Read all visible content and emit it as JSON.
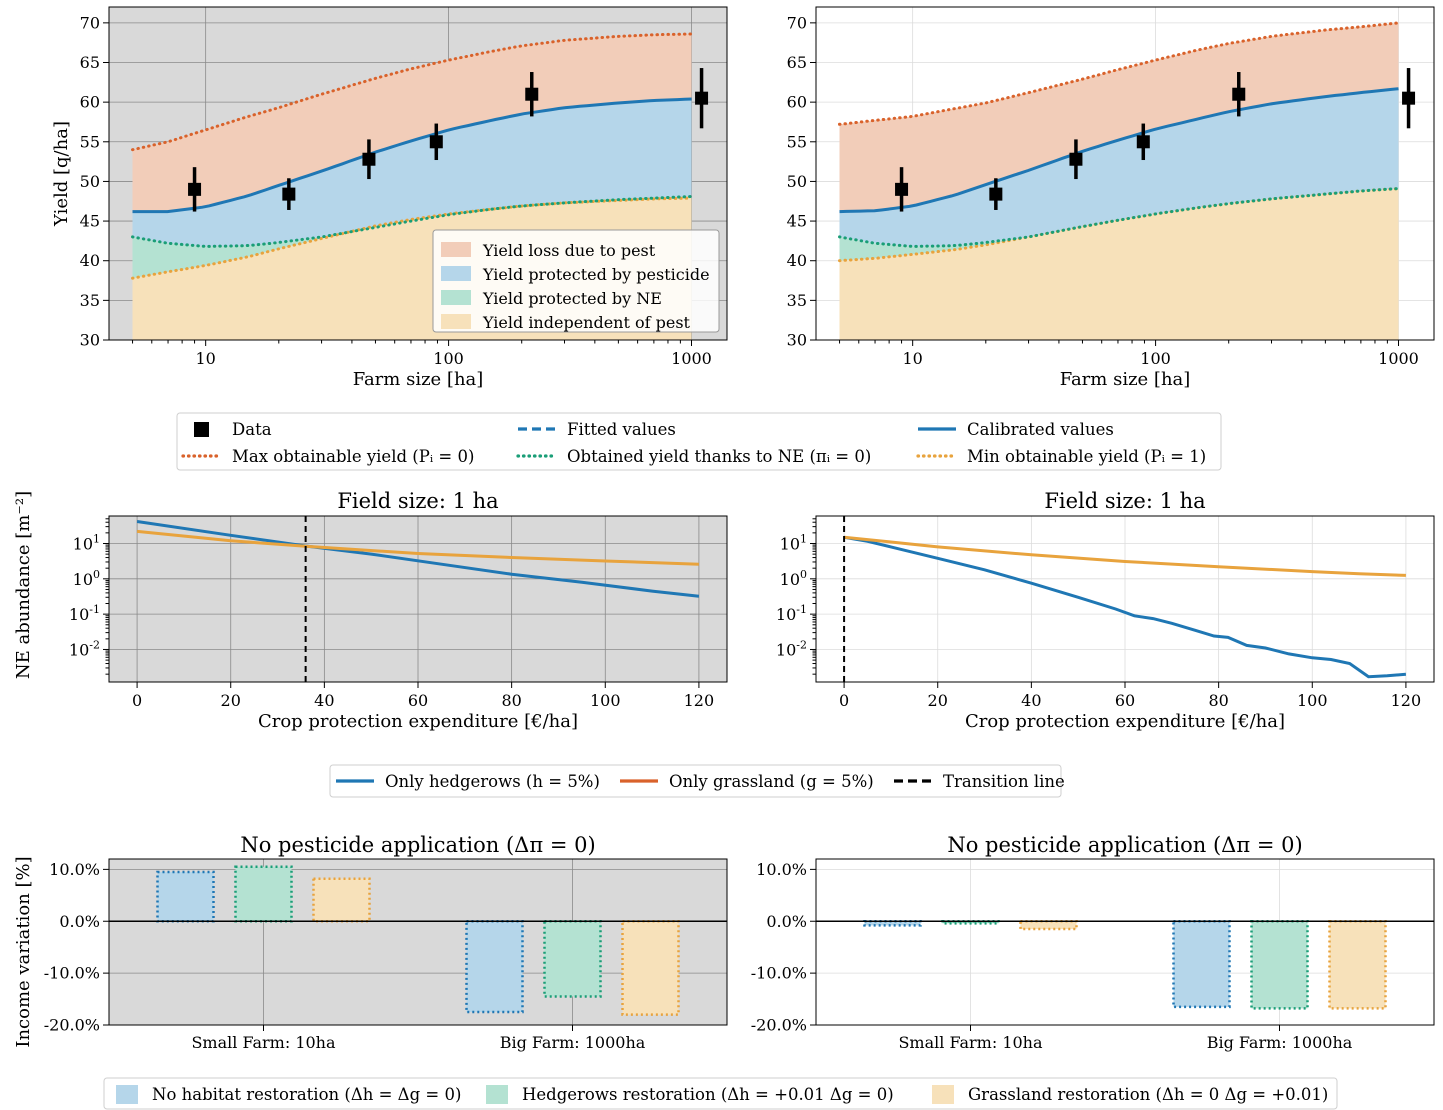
{
  "chart_data": [
    {
      "id": "yield-gray",
      "type": "area",
      "xscale": "log",
      "xlim": [
        4,
        1400
      ],
      "ylim": [
        30,
        72
      ],
      "xlabel": "Farm size [ha]",
      "ylabel": "Yield [q/ha]",
      "xticks": [
        10,
        100,
        1000
      ],
      "xtick_labels": [
        "10",
        "100",
        "1000"
      ],
      "yticks": [
        30,
        35,
        40,
        45,
        50,
        55,
        60,
        65,
        70
      ],
      "ytick_labels": [
        "30",
        "35",
        "40",
        "45",
        "50",
        "55",
        "60",
        "65",
        "70"
      ],
      "background": "#d9d9d9",
      "grid": true,
      "x": [
        5,
        7,
        10,
        15,
        20,
        30,
        50,
        70,
        100,
        150,
        200,
        300,
        500,
        700,
        1000
      ],
      "max_yield": [
        54.0,
        55.0,
        56.5,
        58.2,
        59.3,
        61.0,
        63.0,
        64.2,
        65.3,
        66.4,
        67.1,
        67.8,
        68.3,
        68.5,
        68.6
      ],
      "calibrated": [
        46.2,
        46.2,
        46.8,
        48.2,
        49.5,
        51.3,
        53.7,
        55.1,
        56.5,
        57.7,
        58.5,
        59.3,
        59.9,
        60.2,
        60.4
      ],
      "ne_yield": [
        43.0,
        42.2,
        41.8,
        41.9,
        42.3,
        43.0,
        44.2,
        45.0,
        45.8,
        46.5,
        46.9,
        47.3,
        47.7,
        47.9,
        48.1
      ],
      "min_yield": [
        37.8,
        38.6,
        39.4,
        40.5,
        41.5,
        42.8,
        44.4,
        45.2,
        45.9,
        46.5,
        46.9,
        47.3,
        47.6,
        47.8,
        47.9
      ],
      "data_points": [
        {
          "x": 9,
          "y": 49.0,
          "err": 2.8
        },
        {
          "x": 22,
          "y": 48.4,
          "err": 2.0
        },
        {
          "x": 47,
          "y": 52.8,
          "err": 2.5
        },
        {
          "x": 89,
          "y": 55.0,
          "err": 2.3
        },
        {
          "x": 220,
          "y": 61.0,
          "err": 2.8
        },
        {
          "x": 1100,
          "y": 60.5,
          "err": 3.8
        }
      ],
      "legend": {
        "location": "lower right",
        "entries": [
          {
            "label": "Yield loss due to pest",
            "color": "#f2cdb9"
          },
          {
            "label": "Yield protected by pesticide",
            "color": "#b5d6ea"
          },
          {
            "label": "Yield protected by NE",
            "color": "#b4e2d2"
          },
          {
            "label": "Yield independent of pest",
            "color": "#f7e1ba"
          }
        ]
      }
    },
    {
      "id": "yield-white",
      "type": "area",
      "xscale": "log",
      "xlim": [
        4,
        1400
      ],
      "ylim": [
        30,
        72
      ],
      "xlabel": "Farm size [ha]",
      "ylabel": "",
      "xticks": [
        10,
        100,
        1000
      ],
      "xtick_labels": [
        "10",
        "100",
        "1000"
      ],
      "yticks": [
        30,
        35,
        40,
        45,
        50,
        55,
        60,
        65,
        70
      ],
      "ytick_labels": [
        "30",
        "35",
        "40",
        "45",
        "50",
        "55",
        "60",
        "65",
        "70"
      ],
      "background": "#ffffff",
      "grid": true,
      "x": [
        5,
        7,
        10,
        15,
        20,
        30,
        50,
        70,
        100,
        150,
        200,
        300,
        500,
        700,
        1000
      ],
      "max_yield": [
        57.2,
        57.7,
        58.2,
        59.2,
        59.9,
        61.2,
        62.9,
        64.1,
        65.3,
        66.6,
        67.4,
        68.3,
        69.1,
        69.5,
        70.0
      ],
      "calibrated": [
        46.2,
        46.3,
        46.9,
        48.3,
        49.6,
        51.4,
        53.8,
        55.2,
        56.6,
        57.9,
        58.8,
        59.8,
        60.7,
        61.2,
        61.7
      ],
      "ne_yield": [
        43.0,
        42.2,
        41.8,
        41.9,
        42.3,
        43.0,
        44.3,
        45.1,
        45.9,
        46.7,
        47.2,
        47.8,
        48.4,
        48.8,
        49.1
      ],
      "min_yield": [
        40.0,
        40.3,
        40.8,
        41.4,
        42.0,
        43.0,
        44.3,
        45.1,
        45.9,
        46.7,
        47.2,
        47.8,
        48.4,
        48.8,
        49.1
      ],
      "data_points": [
        {
          "x": 9,
          "y": 49.0,
          "err": 2.8
        },
        {
          "x": 22,
          "y": 48.4,
          "err": 2.0
        },
        {
          "x": 47,
          "y": 52.8,
          "err": 2.5
        },
        {
          "x": 89,
          "y": 55.0,
          "err": 2.3
        },
        {
          "x": 220,
          "y": 61.0,
          "err": 2.8
        },
        {
          "x": 1100,
          "y": 60.5,
          "err": 3.8
        }
      ]
    },
    {
      "id": "ne-gray",
      "type": "line",
      "title": "Field size: 1 ha",
      "yscale": "log",
      "xlim": [
        -6,
        126
      ],
      "ylim": [
        0.0012,
        60
      ],
      "xlabel": "Crop protection expenditure [€/ha]",
      "ylabel": "NE abundance [m⁻²]",
      "xticks": [
        0,
        20,
        40,
        60,
        80,
        100,
        120
      ],
      "xtick_labels": [
        "0",
        "20",
        "40",
        "60",
        "80",
        "100",
        "120"
      ],
      "ytick_exponents": [
        -2,
        -1,
        0,
        1
      ],
      "background": "#d9d9d9",
      "grid": true,
      "transition_x": 36,
      "series": [
        {
          "name": "Only hedgerows (h = 5%)",
          "color": "#1f77b4",
          "x": [
            0,
            20,
            36,
            50,
            65,
            80,
            95,
            110,
            120
          ],
          "y": [
            42,
            17,
            8.5,
            5.0,
            2.6,
            1.35,
            0.8,
            0.45,
            0.32
          ]
        },
        {
          "name": "Only grassland (g = 5%)",
          "color": "#e8a33d",
          "x": [
            0,
            20,
            36,
            60,
            80,
            100,
            120
          ],
          "y": [
            22,
            12,
            8.3,
            5.2,
            4.0,
            3.2,
            2.6
          ]
        }
      ]
    },
    {
      "id": "ne-white",
      "type": "line",
      "title": "Field size: 1 ha",
      "yscale": "log",
      "xlim": [
        -6,
        126
      ],
      "ylim": [
        0.0012,
        60
      ],
      "xlabel": "Crop protection expenditure [€/ha]",
      "ylabel": "",
      "xticks": [
        0,
        20,
        40,
        60,
        80,
        100,
        120
      ],
      "xtick_labels": [
        "0",
        "20",
        "40",
        "60",
        "80",
        "100",
        "120"
      ],
      "ytick_exponents": [
        -2,
        -1,
        0,
        1
      ],
      "background": "#ffffff",
      "grid": true,
      "transition_x": 0,
      "series": [
        {
          "name": "Only hedgerows (h = 5%)",
          "color": "#1f77b4",
          "x": [
            0,
            5,
            10,
            20,
            30,
            40,
            50,
            58,
            62,
            66,
            70,
            75,
            79,
            82,
            86,
            90,
            95,
            100,
            104,
            108,
            112,
            116,
            120
          ],
          "y": [
            15,
            11.5,
            8,
            3.8,
            1.8,
            0.75,
            0.3,
            0.14,
            0.09,
            0.075,
            0.055,
            0.035,
            0.024,
            0.022,
            0.013,
            0.011,
            0.0075,
            0.0058,
            0.0052,
            0.004,
            0.0017,
            0.0018,
            0.002
          ]
        },
        {
          "name": "Only grassland (g = 5%)",
          "color": "#e8a33d",
          "x": [
            0,
            10,
            20,
            40,
            60,
            80,
            100,
            110,
            120
          ],
          "y": [
            15,
            11,
            8,
            4.8,
            3.1,
            2.2,
            1.6,
            1.4,
            1.25
          ]
        }
      ]
    },
    {
      "id": "income-gray",
      "type": "bar",
      "title": "No pesticide application (Δπ = 0)",
      "ylabel": "Income variation [%]",
      "ylim": [
        -20,
        12
      ],
      "yticks": [
        -20,
        -10,
        0,
        10
      ],
      "ytick_labels": [
        "-20.0%",
        "-10.0%",
        "0.0%",
        "10.0%"
      ],
      "categories": [
        "Small Farm: 10ha",
        "Big Farm: 1000ha"
      ],
      "background": "#d9d9d9",
      "grid": true,
      "series": [
        {
          "name": "No habitat restoration (Δh = Δg = 0)",
          "values": [
            9.5,
            -17.5
          ],
          "fill": "#b5d6ea",
          "edge": "#1f77b4"
        },
        {
          "name": "Hedgerows restoration (Δh = +0.01  Δg = 0)",
          "values": [
            10.5,
            -14.5
          ],
          "fill": "#b4e2d2",
          "edge": "#1a9e77"
        },
        {
          "name": "Grassland restoration (Δh = 0  Δg = +0.01)",
          "values": [
            8.2,
            -18.0
          ],
          "fill": "#f7e1ba",
          "edge": "#e8a33d"
        }
      ]
    },
    {
      "id": "income-white",
      "type": "bar",
      "title": "No pesticide application (Δπ = 0)",
      "ylabel": "",
      "ylim": [
        -20,
        12
      ],
      "yticks": [
        -20,
        -10,
        0,
        10
      ],
      "ytick_labels": [
        "-20.0%",
        "-10.0%",
        "0.0%",
        "10.0%"
      ],
      "categories": [
        "Small Farm: 10ha",
        "Big Farm: 1000ha"
      ],
      "background": "#ffffff",
      "grid": true,
      "series": [
        {
          "name": "No habitat restoration (Δh = Δg = 0)",
          "values": [
            -0.8,
            -16.5
          ],
          "fill": "#b5d6ea",
          "edge": "#1f77b4"
        },
        {
          "name": "Hedgerows restoration (Δh = +0.01  Δg = 0)",
          "values": [
            -0.4,
            -16.8
          ],
          "fill": "#b4e2d2",
          "edge": "#1a9e77"
        },
        {
          "name": "Grassland restoration (Δh = 0  Δg = +0.01)",
          "values": [
            -1.5,
            -16.8
          ],
          "fill": "#f7e1ba",
          "edge": "#e8a33d"
        }
      ]
    }
  ],
  "legends": {
    "yield": [
      {
        "label": "Data",
        "kind": "square",
        "color": "#000000"
      },
      {
        "label": "Fitted values",
        "kind": "dashed",
        "color": "#1f77b4"
      },
      {
        "label": "Calibrated values",
        "kind": "solid",
        "color": "#1f77b4"
      },
      {
        "label": "Max obtainable yield (Pᵢ = 0)",
        "kind": "dotted",
        "color": "#d9622b"
      },
      {
        "label": "Obtained yield thanks to NE (πᵢ = 0)",
        "kind": "dotted",
        "color": "#1a9e77"
      },
      {
        "label": "Min obtainable yield (Pᵢ = 1)",
        "kind": "dotted",
        "color": "#e8a33d"
      }
    ],
    "ne": [
      {
        "label": "Only hedgerows (h = 5%)",
        "kind": "solid",
        "color": "#1f77b4"
      },
      {
        "label": "Only grassland (g = 5%)",
        "kind": "solid",
        "color": "#d9622b"
      },
      {
        "label": "Transition line",
        "kind": "dashed",
        "color": "#000000"
      }
    ],
    "income": [
      {
        "label": "No habitat restoration (Δh = Δg = 0)",
        "kind": "patch",
        "color": "#b5d6ea"
      },
      {
        "label": "Hedgerows restoration (Δh = +0.01   Δg = 0)",
        "kind": "patch",
        "color": "#b4e2d2"
      },
      {
        "label": "Grassland restoration (Δh = 0   Δg = +0.01)",
        "kind": "patch",
        "color": "#f7e1ba"
      }
    ]
  },
  "colors": {
    "max_yield": "#d9622b",
    "calibrated": "#1f77b4",
    "ne_yield": "#1a9e77",
    "min_yield": "#e8a33d",
    "area_loss": "#f2cdb9",
    "area_pesticide": "#b5d6ea",
    "area_ne": "#b4e2d2",
    "area_independent": "#f7e1ba"
  }
}
